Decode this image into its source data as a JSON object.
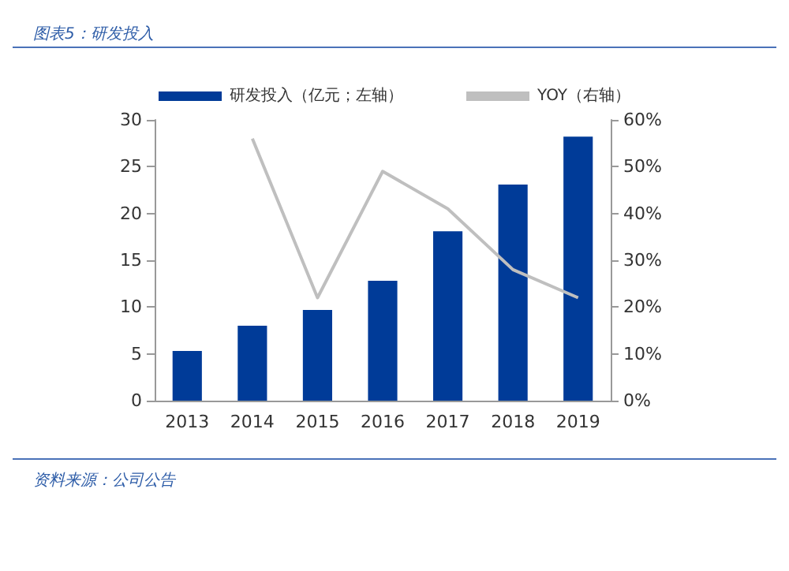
{
  "chart_data": {
    "type": "bar",
    "title": "图表5：研发投入",
    "categories": [
      "2013",
      "2014",
      "2015",
      "2016",
      "2017",
      "2018",
      "2019"
    ],
    "series": [
      {
        "name": "研发投入（亿元；左轴）",
        "color": "#003b98",
        "values": [
          5.3,
          8.0,
          9.7,
          12.8,
          18.1,
          23.1,
          28.2
        ]
      },
      {
        "name": "YOY（右轴）",
        "type": "line",
        "axis": "y2",
        "color": "#bfbfbf",
        "values": [
          null,
          56,
          22,
          49,
          41,
          28,
          22
        ]
      }
    ],
    "ylim": [
      0,
      30
    ],
    "yticks": [
      0,
      5,
      10,
      15,
      20,
      25,
      30
    ],
    "y2lim": [
      0,
      60
    ],
    "y2ticks": [
      {
        "value": 0,
        "label": "0%"
      },
      {
        "value": 10,
        "label": "10%"
      },
      {
        "value": 20,
        "label": "20%"
      },
      {
        "value": 30,
        "label": "30%"
      },
      {
        "value": 40,
        "label": "40%"
      },
      {
        "value": 50,
        "label": "50%"
      },
      {
        "value": 60,
        "label": "60%"
      }
    ],
    "legend": "top",
    "grid": false,
    "marker": "none",
    "annotations": [
      "资料来源：公司公告"
    ]
  }
}
